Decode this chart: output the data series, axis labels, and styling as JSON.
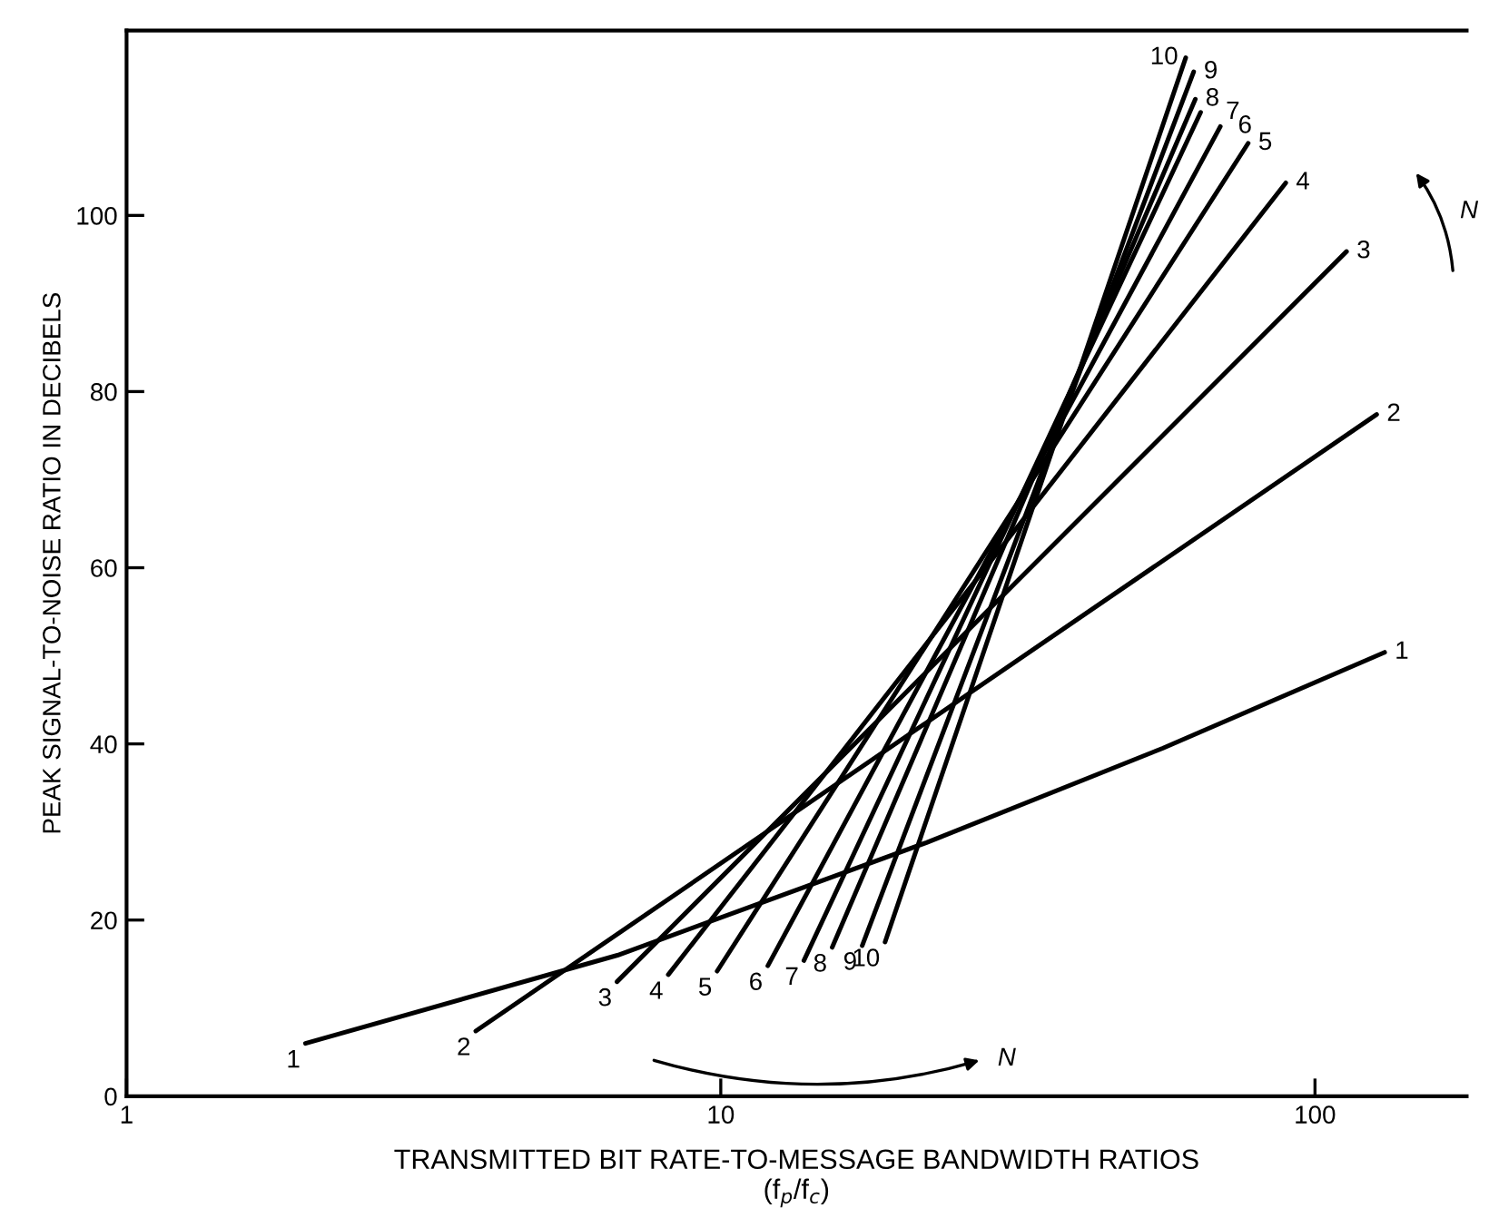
{
  "chart_data": {
    "type": "line",
    "xlabel": "TRANSMITTED BIT RATE-TO-MESSAGE BANDWIDTH RATIOS\n(f$_{p}$/f$_{c}$)",
    "ylabel": "PEAK SIGNAL-TO-NOISE RATIO IN DECIBELS",
    "log": "x",
    "xlim": [
      1,
      180
    ],
    "ylim": [
      0,
      121
    ],
    "xticks": [
      1,
      10,
      100
    ],
    "yticks": [
      0,
      20,
      40,
      60,
      80,
      100
    ],
    "grid": false,
    "legend": false,
    "marker": "none",
    "line_style": "solid",
    "annotations": [
      "N",
      "N"
    ],
    "series": [
      {
        "name": "1",
        "color": "#000000",
        "x": [
          2,
          6.7,
          22.2,
          55.4,
          131
        ],
        "values": [
          6,
          16,
          28.8,
          39.5,
          50.4
        ]
      },
      {
        "name": "2",
        "color": "#000000",
        "x": [
          3.87,
          127
        ],
        "values": [
          7.4,
          77.4
        ]
      },
      {
        "name": "3",
        "color": "#000000",
        "x": [
          6.69,
          113
        ],
        "values": [
          13.0,
          95.9
        ]
      },
      {
        "name": "4",
        "color": "#000000",
        "x": [
          8.16,
          89.3
        ],
        "values": [
          13.8,
          103.7
        ]
      },
      {
        "name": "5",
        "color": "#000000",
        "x": [
          9.86,
          77.2
        ],
        "values": [
          14.2,
          108.2
        ]
      },
      {
        "name": "6",
        "color": "#000000",
        "x": [
          12.0,
          69.3
        ],
        "values": [
          14.8,
          110.1
        ]
      },
      {
        "name": "7",
        "color": "#000000",
        "x": [
          13.8,
          64.2
        ],
        "values": [
          15.4,
          111.7
        ]
      },
      {
        "name": "8",
        "color": "#000000",
        "x": [
          15.4,
          62.9
        ],
        "values": [
          16.9,
          113.2
        ]
      },
      {
        "name": "9",
        "color": "#000000",
        "x": [
          17.3,
          62.5
        ],
        "values": [
          17.1,
          116.3
        ]
      },
      {
        "name": "10",
        "color": "#000000",
        "x": [
          18.9,
          60.6
        ],
        "values": [
          17.5,
          117.9
        ]
      }
    ]
  }
}
